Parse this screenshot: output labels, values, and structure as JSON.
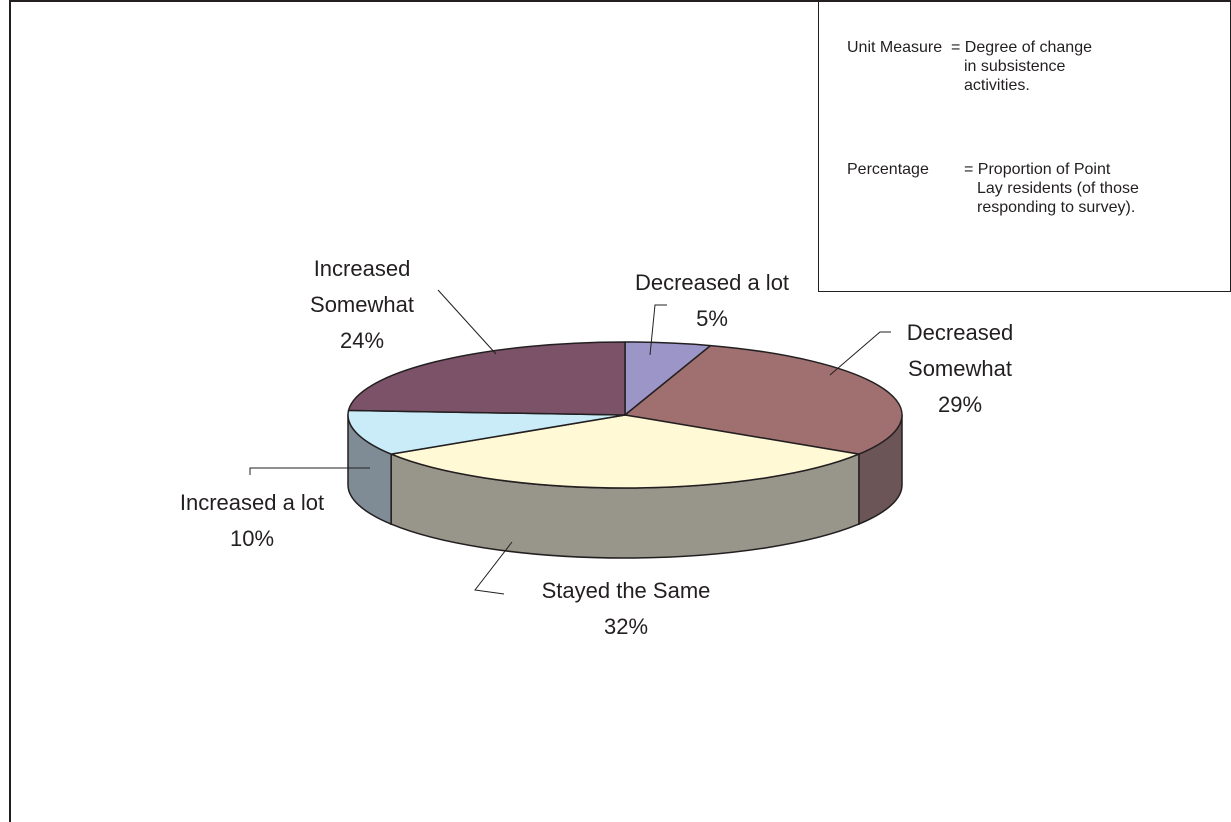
{
  "chart_data": {
    "type": "pie",
    "categories": [
      "Decreased a lot",
      "Decreased Somewhat",
      "Stayed the Same",
      "Increased a lot",
      "Increased Somewhat"
    ],
    "values": [
      5,
      29,
      32,
      10,
      24
    ],
    "labels": [
      {
        "lines": [
          "Decreased a lot",
          "5%"
        ]
      },
      {
        "lines": [
          "Decreased",
          "Somewhat",
          "29%"
        ]
      },
      {
        "lines": [
          "Stayed the Same",
          "32%"
        ]
      },
      {
        "lines": [
          "Increased a lot",
          "10%"
        ]
      },
      {
        "lines": [
          "Increased",
          "Somewhat",
          "24%"
        ]
      }
    ],
    "colors": {
      "top": [
        "#9c96c8",
        "#a07070",
        "#fff9d6",
        "#c9ecf8",
        "#7b5268"
      ],
      "side": [
        "#6e6a8c",
        "#6b5556",
        "#98968a",
        "#7f8c96",
        "#584050"
      ]
    },
    "three_d": true
  },
  "notes": [
    {
      "term": "Unit Measure",
      "definition": [
        "= Degree of change",
        "in subsistence",
        "activities."
      ]
    },
    {
      "term": "Percentage",
      "definition": [
        "= Proportion of Point",
        "Lay residents (of those",
        "responding to survey)."
      ]
    }
  ]
}
